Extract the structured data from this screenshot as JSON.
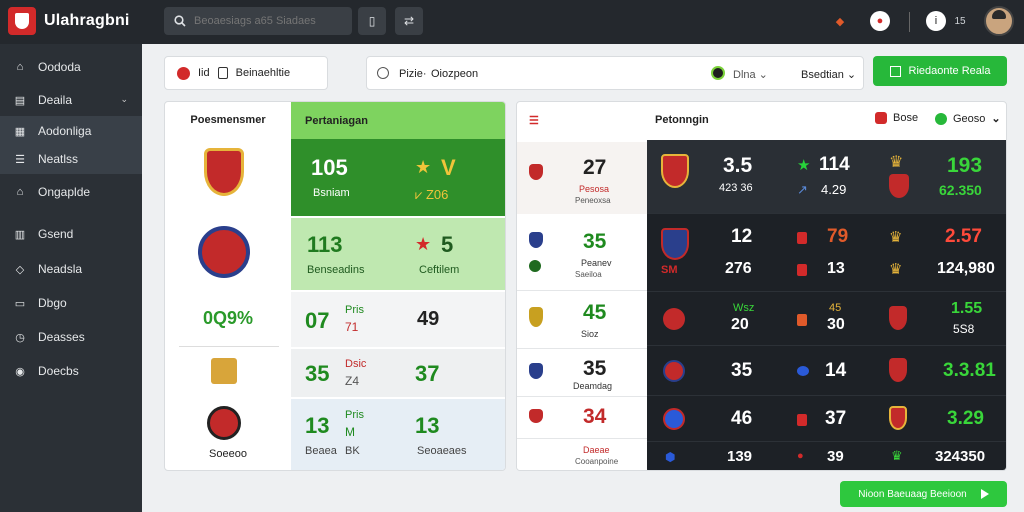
{
  "app": {
    "title": "Ulahragbni"
  },
  "search": {
    "placeholder": "Beoaesiags a65 Siadaes"
  },
  "topbar": {
    "btn1": "▯",
    "btn2": "⇄",
    "icons": [
      "shield-icon",
      "badge-icon",
      "info-icon",
      "gear-icon"
    ],
    "status": "15"
  },
  "sidebar": {
    "items": [
      {
        "label": "Oododa",
        "icon": "home-icon"
      },
      {
        "label": "Deaila",
        "icon": "panel-icon"
      },
      {
        "label": "Aodonliga",
        "icon": "list-icon"
      },
      {
        "label": "Neatlss",
        "icon": "menu-icon"
      },
      {
        "label": "Ongaplde",
        "icon": "house-icon"
      },
      {
        "label": "Gsend",
        "icon": "grid-icon"
      },
      {
        "label": "Neadsla",
        "icon": "location-icon"
      },
      {
        "label": "Dbgo",
        "icon": "box-icon"
      },
      {
        "label": "Deasses",
        "icon": "clock-icon"
      },
      {
        "label": "Doecbs",
        "icon": "globe-icon"
      }
    ]
  },
  "filters": {
    "left_tag": "Iid",
    "left_label": "Beinaehltie",
    "main_label": "Pizie·",
    "main_value": "Oiozpeon",
    "select1": "Dlna",
    "select2": "Bsedtian",
    "green_button": "Riedaonte Reala"
  },
  "left_panel": {
    "header": "Poesmensmer",
    "green_header": "Pertaniagan",
    "footer": "Soeeoo",
    "percent": "0Q9%",
    "rows": [
      {
        "a": "105",
        "a_sub": "Bsniam",
        "b": "V",
        "b_sub": "Z06",
        "star": "★"
      },
      {
        "a": "113",
        "a_sub": "Benseadins",
        "b": "5",
        "b_sub": "Ceftilem",
        "star": "★"
      },
      {
        "a": "07",
        "pair_top": "Pris",
        "pair_bottom": "71",
        "b": "49"
      },
      {
        "a": "35",
        "pair_top": "Dsic",
        "pair_bottom": "Z4",
        "b": "37"
      },
      {
        "a": "13",
        "a_sub": "Beaea",
        "pair_top": "Pris",
        "pair_bottom": "M",
        "b_note": "BK",
        "b": "13",
        "b_sub": "Seoaeaes"
      }
    ]
  },
  "right_panel": {
    "header": "Petonngin",
    "tag1": "Bose",
    "tag2": "Geoso",
    "left_rows": [
      {
        "value": "27",
        "sub": "Pesosa",
        "sub2": "Peneoxsa"
      },
      {
        "value": "35",
        "sub": "Peanev",
        "sub2": "Saeiloa"
      },
      {
        "value": "45",
        "sub": "Sioz"
      },
      {
        "value": "35",
        "sub": "Deamdag"
      },
      {
        "value": "34",
        "sub": ""
      },
      {
        "value": "",
        "sub": "Daeae",
        "sub2": "Cooanpoine"
      }
    ],
    "dark_rows": [
      {
        "v1": "3.5",
        "v1_sub": "423  36",
        "v2": "114",
        "v2_sub": "4.29",
        "v3": "193",
        "v3_sub": "62.350"
      },
      {
        "v1": "12",
        "v2": "79",
        "v3": "2.57"
      },
      {
        "v1": "276",
        "v1_tag": "SM",
        "v2": "13",
        "v3": "124,980"
      },
      {
        "v1": "20",
        "v1_sub": "Wsz",
        "v2": "30",
        "v2_sub": "45",
        "v3": "1.55",
        "v3_sub": "5S8"
      },
      {
        "v1": "35",
        "v2": "14",
        "v3": "3.3.81"
      },
      {
        "v1": "46",
        "v2": "37",
        "v3": "3.29"
      },
      {
        "v1": "139",
        "v2": "39",
        "v3": "324350"
      }
    ]
  },
  "cta": {
    "label": "Nioon Baeuaag Beeioon"
  },
  "colors": {
    "accent_green": "#27b83a",
    "light_green": "#7ed35f",
    "dark": "#1d2126",
    "red": "#d22a2a"
  }
}
